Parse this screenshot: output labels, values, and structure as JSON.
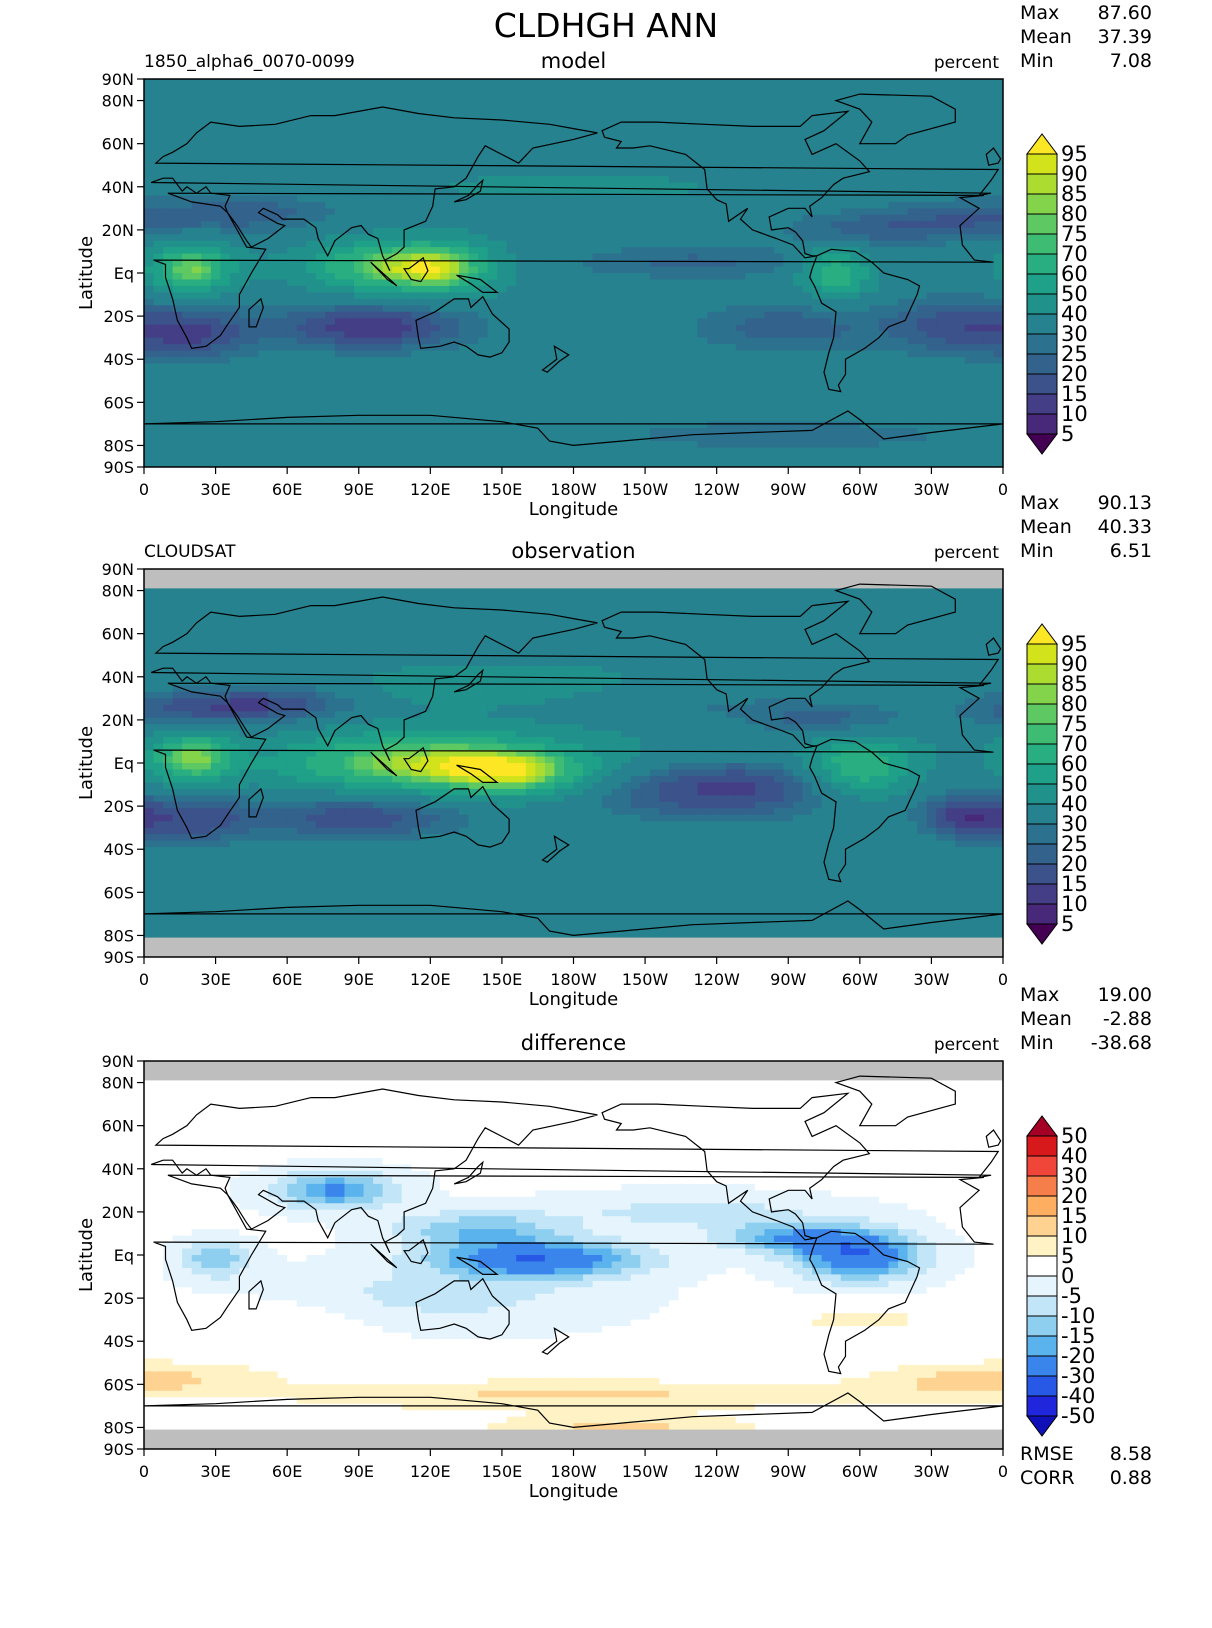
{
  "title": "CLDHGH ANN",
  "panels": [
    {
      "id": "model",
      "case_label": "1850_alpha6_0070-0099",
      "center_label": "model",
      "units": "percent",
      "stats": [
        {
          "label": "Max",
          "value": "87.60"
        },
        {
          "label": "Mean",
          "value": "37.39"
        },
        {
          "label": "Min",
          "value": "7.08"
        }
      ],
      "colorbar_labels": [
        "95",
        "90",
        "85",
        "80",
        "75",
        "70",
        "60",
        "50",
        "40",
        "30",
        "25",
        "20",
        "15",
        "10",
        "5"
      ],
      "colors": [
        "#fde725",
        "#d2e21b",
        "#addc30",
        "#84d44b",
        "#5ec962",
        "#3fbc73",
        "#28ae80",
        "#1fa088",
        "#21918c",
        "#26828e",
        "#2c728e",
        "#33638d",
        "#3b528b",
        "#433e85",
        "#482878",
        "#440154"
      ]
    },
    {
      "id": "observation",
      "case_label": "CLOUDSAT",
      "center_label": "observation",
      "units": "percent",
      "stats": [
        {
          "label": "Max",
          "value": "90.13"
        },
        {
          "label": "Mean",
          "value": "40.33"
        },
        {
          "label": "Min",
          "value": "6.51"
        }
      ],
      "colorbar_labels": [
        "95",
        "90",
        "85",
        "80",
        "75",
        "70",
        "60",
        "50",
        "40",
        "30",
        "25",
        "20",
        "15",
        "10",
        "5"
      ],
      "colors": [
        "#fde725",
        "#d2e21b",
        "#addc30",
        "#84d44b",
        "#5ec962",
        "#3fbc73",
        "#28ae80",
        "#1fa088",
        "#21918c",
        "#26828e",
        "#2c728e",
        "#33638d",
        "#3b528b",
        "#433e85",
        "#482878",
        "#440154"
      ],
      "missing_color": "#bebebe"
    },
    {
      "id": "difference",
      "case_label": "",
      "center_label": "difference",
      "units": "percent",
      "stats": [
        {
          "label": "Max",
          "value": "19.00"
        },
        {
          "label": "Mean",
          "value": "-2.88"
        },
        {
          "label": "Min",
          "value": "-38.68"
        }
      ],
      "colorbar_labels": [
        "50",
        "40",
        "30",
        "20",
        "15",
        "10",
        "5",
        "0",
        "-5",
        "-10",
        "-15",
        "-20",
        "-30",
        "-40",
        "-50"
      ],
      "colors": [
        "#a50026",
        "#d7191c",
        "#f0463a",
        "#f67e4b",
        "#fdae61",
        "#fed290",
        "#fff2c4",
        "#ffffff",
        "#e6f5fd",
        "#c2e6f7",
        "#8ecff0",
        "#5ab3ec",
        "#3a85ec",
        "#2758e6",
        "#1f26dc",
        "#1010b8"
      ],
      "bottom_stats": [
        {
          "label": "RMSE",
          "value": "8.58"
        },
        {
          "label": "CORR",
          "value": "0.88"
        }
      ],
      "missing_color": "#bebebe"
    }
  ],
  "chart_data": [
    {
      "type": "heatmap",
      "panel": "model",
      "xlabel": "Longitude",
      "ylabel": "Latitude",
      "x_ticks": [
        "0",
        "30E",
        "60E",
        "90E",
        "120E",
        "150E",
        "180W",
        "150W",
        "120W",
        "90W",
        "60W",
        "30W",
        "0"
      ],
      "y_ticks": [
        "90N",
        "80N",
        "60N",
        "40N",
        "20N",
        "Eq",
        "20S",
        "40S",
        "60S",
        "80S",
        "90S"
      ],
      "xlim": [
        0,
        360
      ],
      "ylim": [
        -90,
        90
      ],
      "levels": [
        5,
        10,
        15,
        20,
        25,
        30,
        40,
        50,
        60,
        70,
        75,
        80,
        85,
        90,
        95
      ],
      "max": 87.6,
      "mean": 37.39,
      "min": 7.08
    },
    {
      "type": "heatmap",
      "panel": "observation",
      "xlabel": "Longitude",
      "ylabel": "Latitude",
      "x_ticks": [
        "0",
        "30E",
        "60E",
        "90E",
        "120E",
        "150E",
        "180W",
        "150W",
        "120W",
        "90W",
        "60W",
        "30W",
        "0"
      ],
      "y_ticks": [
        "90N",
        "80N",
        "60N",
        "40N",
        "20N",
        "Eq",
        "20S",
        "40S",
        "60S",
        "80S",
        "90S"
      ],
      "xlim": [
        0,
        360
      ],
      "ylim": [
        -90,
        90
      ],
      "levels": [
        5,
        10,
        15,
        20,
        25,
        30,
        40,
        50,
        60,
        70,
        75,
        80,
        85,
        90,
        95
      ],
      "max": 90.13,
      "mean": 40.33,
      "min": 6.51
    },
    {
      "type": "heatmap",
      "panel": "difference",
      "xlabel": "Longitude",
      "ylabel": "Latitude",
      "x_ticks": [
        "0",
        "30E",
        "60E",
        "90E",
        "120E",
        "150E",
        "180W",
        "150W",
        "120W",
        "90W",
        "60W",
        "30W",
        "0"
      ],
      "y_ticks": [
        "90N",
        "80N",
        "60N",
        "40N",
        "20N",
        "Eq",
        "20S",
        "40S",
        "60S",
        "80S",
        "90S"
      ],
      "xlim": [
        0,
        360
      ],
      "ylim": [
        -90,
        90
      ],
      "levels": [
        -50,
        -40,
        -30,
        -20,
        -15,
        -10,
        -5,
        0,
        5,
        10,
        15,
        20,
        30,
        40,
        50
      ],
      "max": 19.0,
      "mean": -2.88,
      "min": -38.68,
      "rmse": 8.58,
      "corr": 0.88
    }
  ]
}
